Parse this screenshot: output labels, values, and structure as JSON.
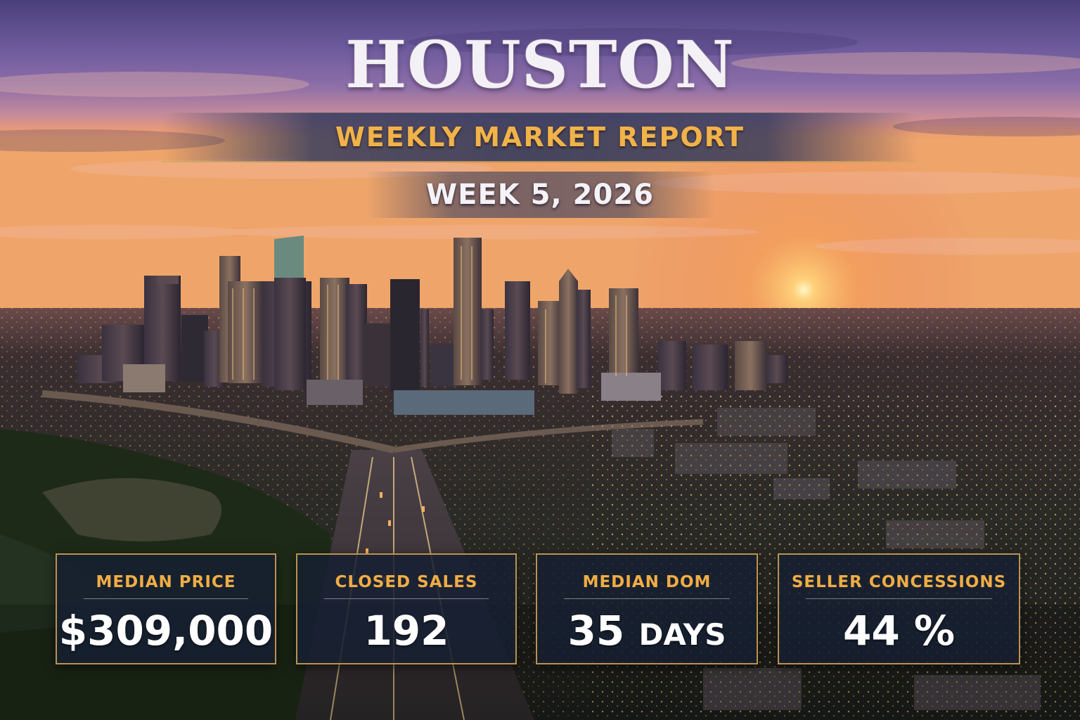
{
  "header": {
    "city": "HOUSTON",
    "report_title": "WEEKLY MARKET REPORT",
    "week": "WEEK 5, 2026"
  },
  "stats": [
    {
      "label": "MEDIAN PRICE",
      "value": "$309,000",
      "unit": ""
    },
    {
      "label": "CLOSED SALES",
      "value": "192",
      "unit": ""
    },
    {
      "label": "MEDIAN DOM",
      "value": "35",
      "unit": "DAYS"
    },
    {
      "label": "SELLER CONCESSIONS",
      "value": "44",
      "unit": "%"
    }
  ],
  "colors": {
    "accent_gold": "#f0ad45",
    "card_bg": "#162032",
    "card_border": "#cca052"
  }
}
